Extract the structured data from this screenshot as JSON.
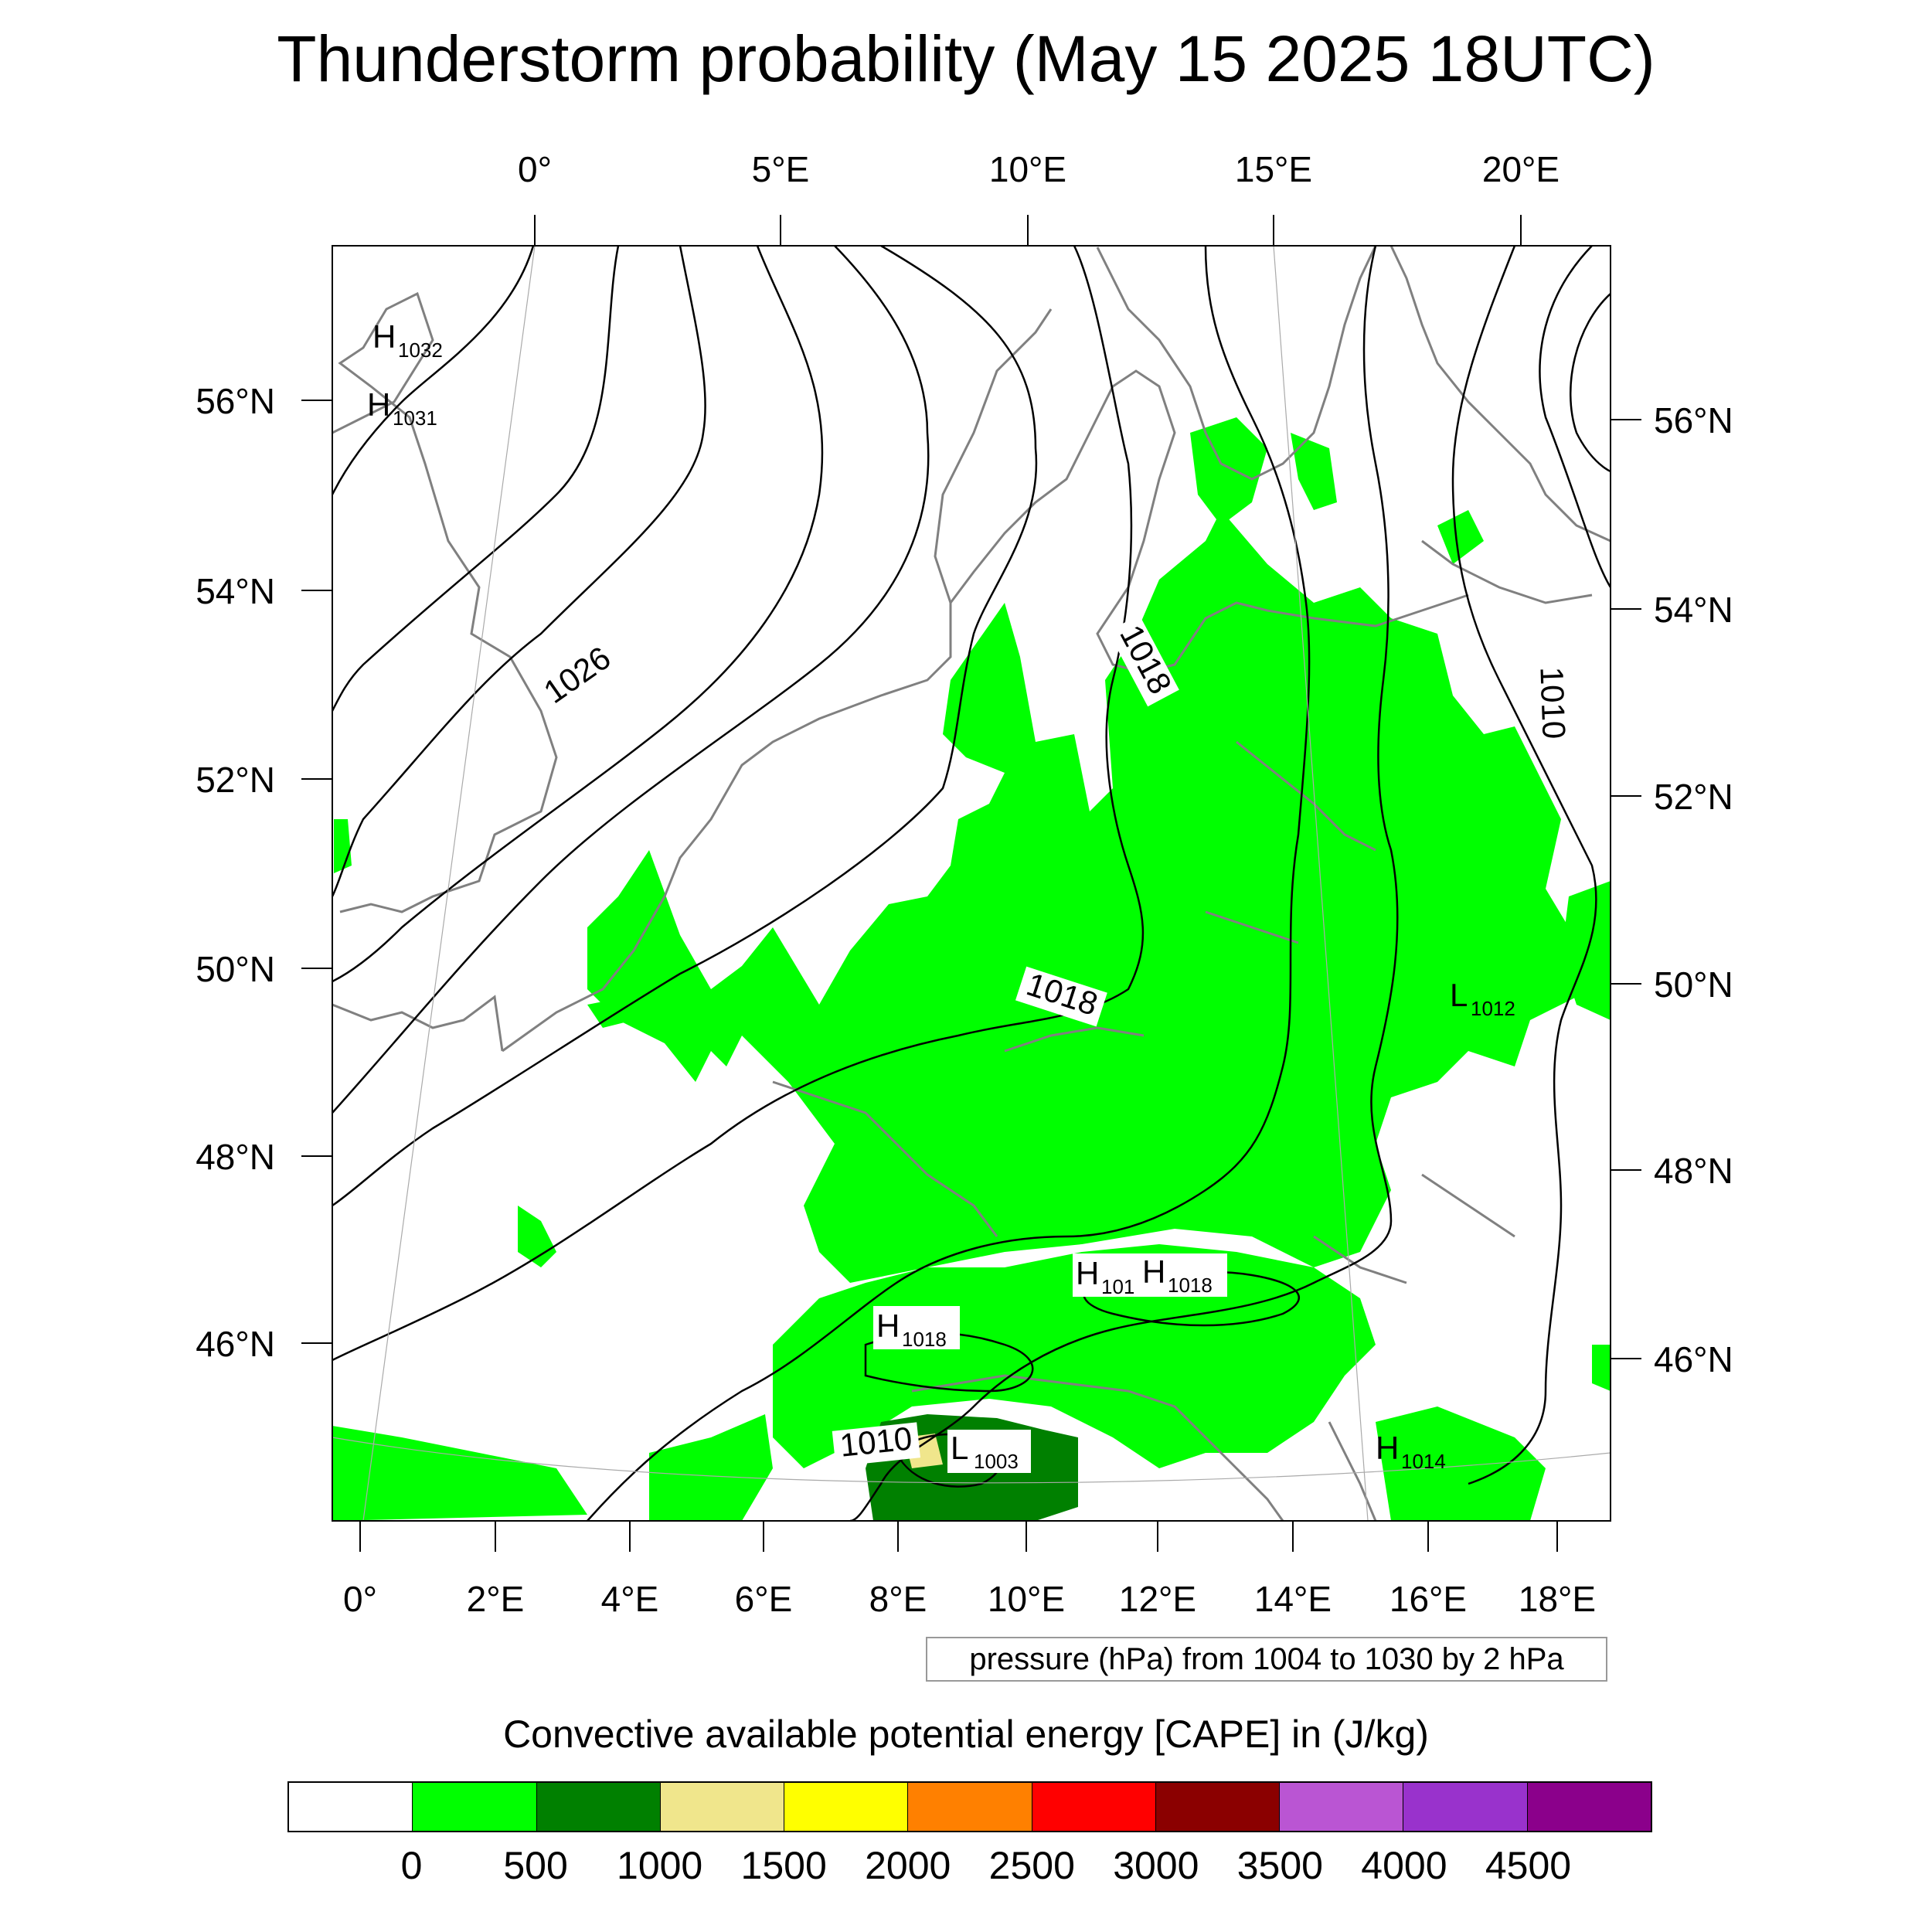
{
  "title": "Thunderstorm probability (May 15 2025 18UTC)",
  "map": {
    "top_lon_labels": [
      "0°",
      "5°E",
      "10°E",
      "15°E",
      "20°E"
    ],
    "bottom_lon_labels": [
      "0°",
      "2°E",
      "4°E",
      "6°E",
      "8°E",
      "10°E",
      "12°E",
      "14°E",
      "16°E",
      "18°E"
    ],
    "left_lat_labels": [
      "56°N",
      "54°N",
      "52°N",
      "50°N",
      "48°N",
      "46°N"
    ],
    "right_lat_labels": [
      "56°N",
      "54°N",
      "52°N",
      "50°N",
      "48°N",
      "46°N"
    ],
    "isobar_labels": [
      "1026",
      "1018",
      "1018",
      "1010",
      "1010"
    ],
    "pressure_centers": [
      {
        "letter": "H",
        "value": "1032"
      },
      {
        "letter": "H",
        "value": "1031"
      },
      {
        "letter": "H",
        "value": "101"
      },
      {
        "letter": "H",
        "value": "1018"
      },
      {
        "letter": "H",
        "value": "1018"
      },
      {
        "letter": "L",
        "value": "1003"
      },
      {
        "letter": "L",
        "value": "1012"
      },
      {
        "letter": "H",
        "value": "1014"
      }
    ],
    "colors": {
      "cape_0_500": "#00ff00",
      "cape_500_1000": "#008000",
      "cape_1000_1500": "#f0e68c",
      "coast": "#808080",
      "isobar": "#000000"
    }
  },
  "pressure_note": "pressure (hPa) from 1004 to 1030 by 2 hPa",
  "colorbar": {
    "title": "Convective available potential energy [CAPE] in (J/kg)",
    "colors": [
      "#ffffff",
      "#00ff00",
      "#008000",
      "#f0e68c",
      "#ffff00",
      "#ff8000",
      "#ff0000",
      "#8b0000",
      "#ba55d3",
      "#9932cc",
      "#8b008b"
    ],
    "labels": [
      "0",
      "500",
      "1000",
      "1500",
      "2000",
      "2500",
      "3000",
      "3500",
      "4000",
      "4500"
    ]
  }
}
